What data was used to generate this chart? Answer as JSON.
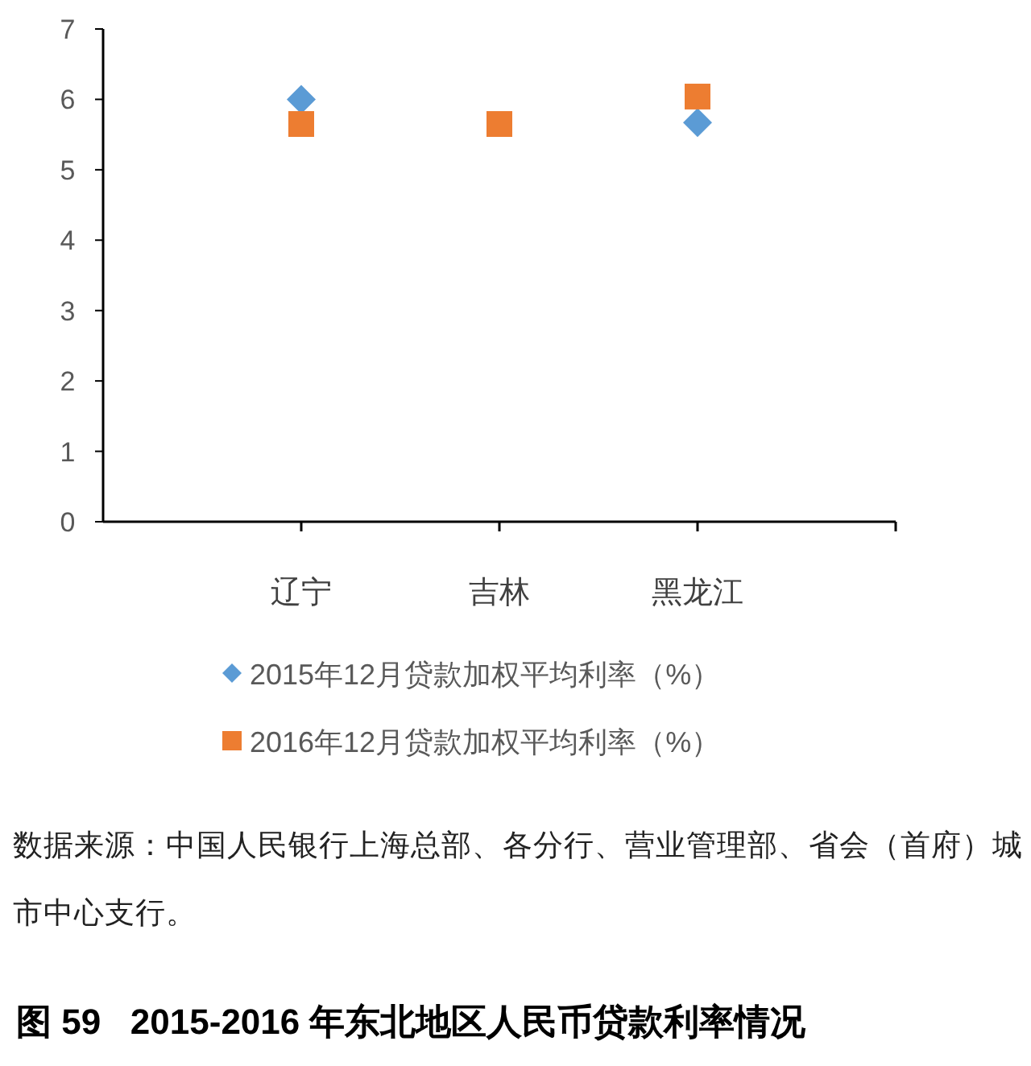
{
  "chart_data": {
    "type": "scatter",
    "title": "图 59   2015-2016 年东北地区人民币贷款利率情况",
    "categories": [
      "辽宁",
      "吉林",
      "黑龙江"
    ],
    "series": [
      {
        "name": "2015年12月贷款加权平均利率（%）",
        "color": "#5b9bd5",
        "marker": "diamond",
        "values": [
          6.0,
          null,
          5.67
        ]
      },
      {
        "name": "2016年12月贷款加权平均利率（%）",
        "color": "#ed7d31",
        "marker": "square",
        "values": [
          5.65,
          5.65,
          6.04
        ]
      }
    ],
    "ylim": [
      0,
      7
    ],
    "yticks": [
      0,
      1,
      2,
      3,
      4,
      5,
      6,
      7
    ],
    "grid": false,
    "legend": "bottom",
    "annotations": [
      "数据来源：中国人民银行上海总部、各分行、营业管理部、省会（首府）城市中心支行。"
    ]
  }
}
